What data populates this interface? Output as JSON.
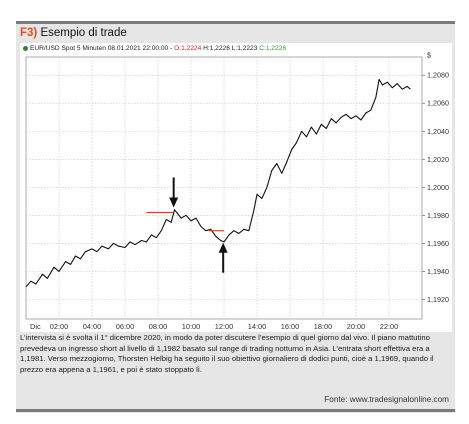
{
  "header": {
    "figure_number": "F3)",
    "title": "Esempio di trade"
  },
  "chart_data": {
    "type": "line",
    "instrument": "EUR/USD Spot 5 Minuten",
    "info_bar": {
      "datetime": "08.01.2021 22:00:00",
      "separator": "-",
      "open": "O:1,2224",
      "high": "H:1,2226",
      "low": "L:1,2223",
      "close": "C:1,2226"
    },
    "currency_symbol": "$",
    "x_tick_labels": [
      "Dic",
      "02:00",
      "04:00",
      "06:00",
      "08:00",
      "10:00",
      "12:00",
      "14:00",
      "16:00",
      "18:00",
      "20:00",
      "22:00"
    ],
    "y_tick_labels": [
      "1,2080",
      "1,2060",
      "1,2040",
      "1,2020",
      "1,2000",
      "1,1980",
      "1,1960",
      "1,1940",
      "1,1920"
    ],
    "y_ticks": [
      1.208,
      1.206,
      1.204,
      1.202,
      1.2,
      1.198,
      1.196,
      1.194,
      1.192
    ],
    "ylim": [
      1.1906,
      1.2093
    ],
    "xlim": [
      0,
      24
    ],
    "grid": true,
    "colors": {
      "price_line": "#111111",
      "level_line": "#e23b1f",
      "arrow": "#111111"
    },
    "series": [
      {
        "points": [
          [
            0.0,
            1.1929
          ],
          [
            0.3,
            1.1933
          ],
          [
            0.6,
            1.1931
          ],
          [
            1.0,
            1.1938
          ],
          [
            1.3,
            1.1935
          ],
          [
            1.7,
            1.1943
          ],
          [
            2.0,
            1.194
          ],
          [
            2.4,
            1.1947
          ],
          [
            2.7,
            1.1945
          ],
          [
            3.0,
            1.1951
          ],
          [
            3.3,
            1.1949
          ],
          [
            3.6,
            1.1954
          ],
          [
            4.0,
            1.1956
          ],
          [
            4.3,
            1.1954
          ],
          [
            4.6,
            1.1958
          ],
          [
            5.0,
            1.1956
          ],
          [
            5.3,
            1.196
          ],
          [
            5.6,
            1.1958
          ],
          [
            6.0,
            1.1957
          ],
          [
            6.3,
            1.1961
          ],
          [
            6.6,
            1.1959
          ],
          [
            7.0,
            1.1962
          ],
          [
            7.3,
            1.1961
          ],
          [
            7.6,
            1.1966
          ],
          [
            7.9,
            1.1964
          ],
          [
            8.2,
            1.1969
          ],
          [
            8.5,
            1.1977
          ],
          [
            8.8,
            1.1975
          ],
          [
            9.0,
            1.1984
          ],
          [
            9.2,
            1.1981
          ],
          [
            9.4,
            1.1978
          ],
          [
            9.7,
            1.198
          ],
          [
            10.0,
            1.1976
          ],
          [
            10.3,
            1.1978
          ],
          [
            10.6,
            1.1972
          ],
          [
            10.9,
            1.1969
          ],
          [
            11.2,
            1.197
          ],
          [
            11.5,
            1.1965
          ],
          [
            11.8,
            1.1962
          ],
          [
            12.0,
            1.1961
          ],
          [
            12.3,
            1.1966
          ],
          [
            12.6,
            1.1969
          ],
          [
            12.9,
            1.1967
          ],
          [
            13.2,
            1.197
          ],
          [
            13.5,
            1.1969
          ],
          [
            13.8,
            1.1983
          ],
          [
            14.0,
            1.1995
          ],
          [
            14.3,
            1.1992
          ],
          [
            14.6,
            1.2
          ],
          [
            14.9,
            1.2012
          ],
          [
            15.2,
            1.2017
          ],
          [
            15.5,
            1.201
          ],
          [
            15.8,
            1.2018
          ],
          [
            16.1,
            1.2027
          ],
          [
            16.4,
            1.2032
          ],
          [
            16.7,
            1.204
          ],
          [
            17.0,
            1.2036
          ],
          [
            17.3,
            1.2043
          ],
          [
            17.6,
            1.2038
          ],
          [
            17.9,
            1.2045
          ],
          [
            18.2,
            1.2042
          ],
          [
            18.5,
            1.2049
          ],
          [
            18.8,
            1.2046
          ],
          [
            19.1,
            1.205
          ],
          [
            19.4,
            1.2052
          ],
          [
            19.7,
            1.2049
          ],
          [
            20.0,
            1.2051
          ],
          [
            20.3,
            1.2048
          ],
          [
            20.6,
            1.2053
          ],
          [
            20.9,
            1.2055
          ],
          [
            21.2,
            1.2064
          ],
          [
            21.4,
            1.2077
          ],
          [
            21.6,
            1.2073
          ],
          [
            21.9,
            1.2075
          ],
          [
            22.2,
            1.2071
          ],
          [
            22.5,
            1.2074
          ],
          [
            22.8,
            1.207
          ],
          [
            23.1,
            1.2072
          ],
          [
            23.3,
            1.207
          ]
        ]
      }
    ],
    "annotations": {
      "short_entry": {
        "price": 1.1982,
        "x_from": 7.3,
        "x_to": 8.9,
        "arrow": "down",
        "arrow_x": 8.95
      },
      "stop_level": {
        "price": 1.1969,
        "x_from": 11.1,
        "x_to": 12.0,
        "arrow": "up",
        "arrow_x": 11.95
      }
    }
  },
  "caption": {
    "text": "L’intervista si è svolta il 1° dicembre 2020, in modo da poter discutere l’esempio di quel giorno dal vivo. Il piano mattutino prevedeva un ingresso short al livello di 1,1982 basato sul range di trading notturno in Asia. L’entrata short effettiva era a 1,1981. Verso mezzogiorno, Thorsten Helbig ha seguito il suo obiettivo giornaliero di dodici punti, cioè a 1,1969, quando il prezzo era appena a 1,1961, e poi è stato stoppato lì."
  },
  "source": "Fonte: www.tradesignalonline.com"
}
